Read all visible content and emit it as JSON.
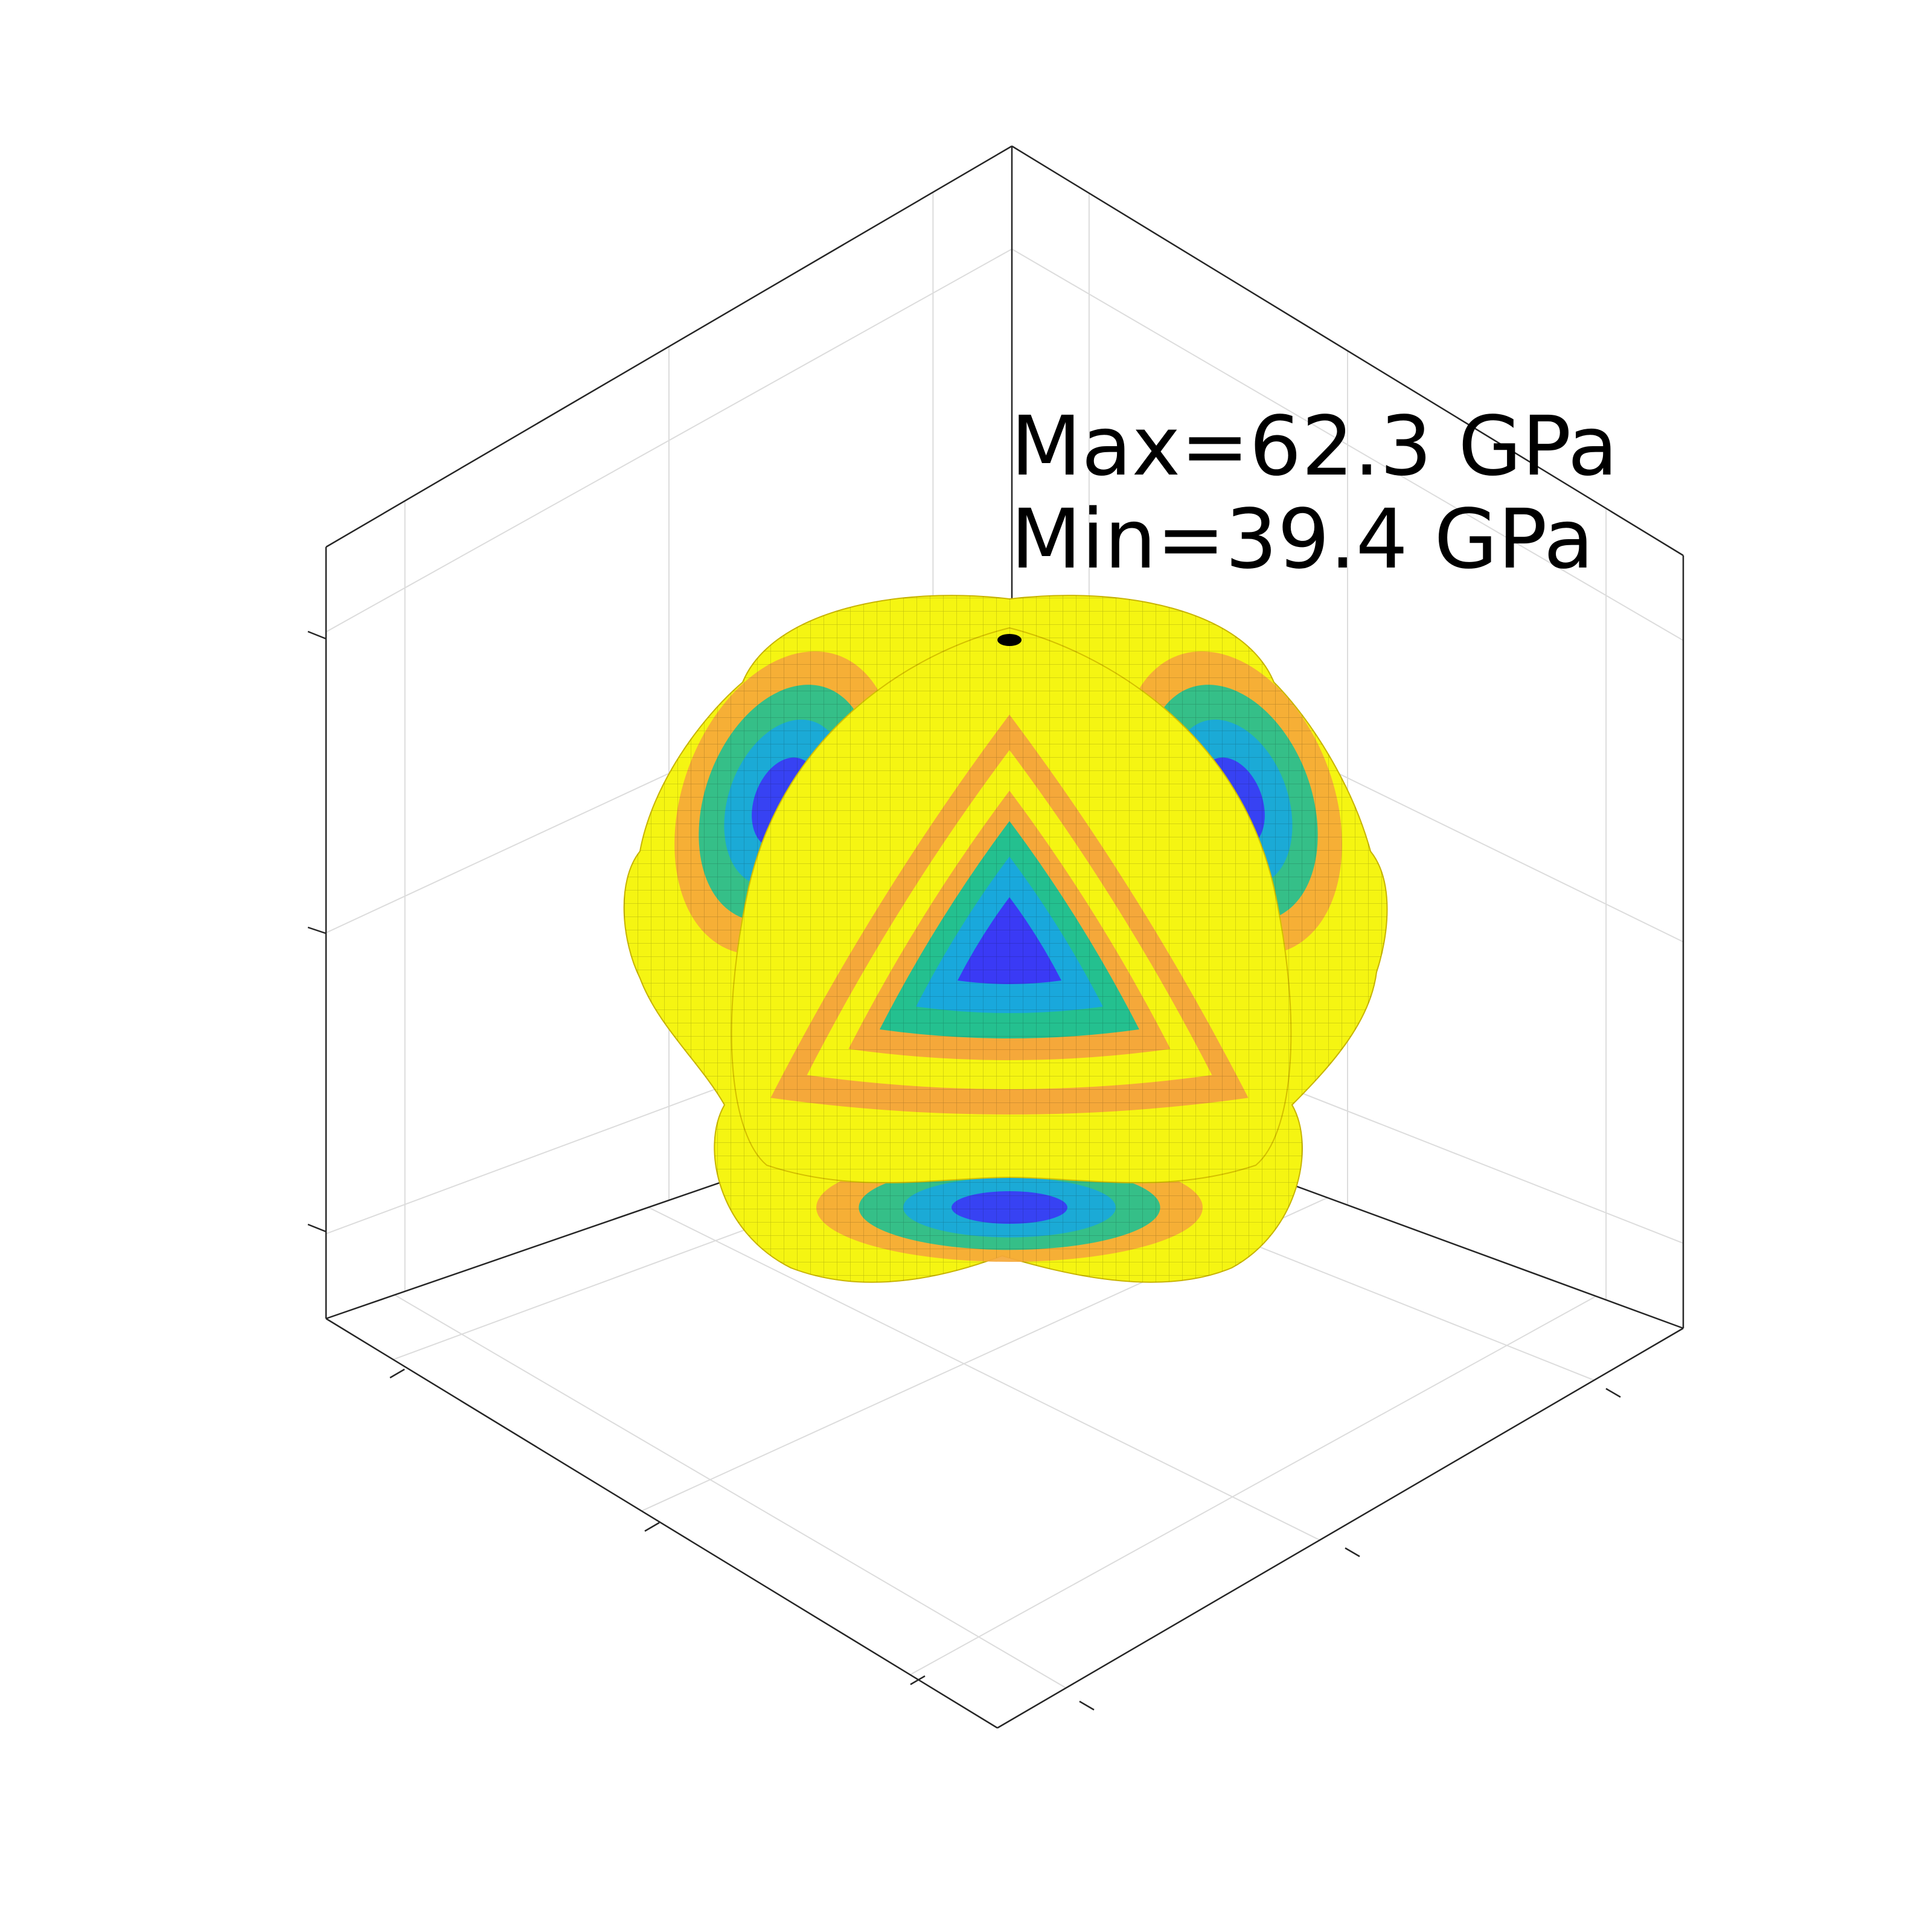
{
  "chart_data": {
    "type": "surface",
    "annotations": [
      "Max=62.3 GPa",
      "Min=39.4 GPa"
    ],
    "max_value": 62.3,
    "min_value": 39.4,
    "unit": "GPa",
    "title": "",
    "xlabel": "",
    "ylabel": "",
    "zlabel": "",
    "grid": true,
    "tick_labels_visible": false,
    "colormap": [
      "#3a3af5",
      "#19a8dc",
      "#24c08f",
      "#f5a83a",
      "#f5f512"
    ],
    "axis_color": "#262626",
    "grid_color": "#dcdcdc",
    "mesh_color": "#000000"
  }
}
